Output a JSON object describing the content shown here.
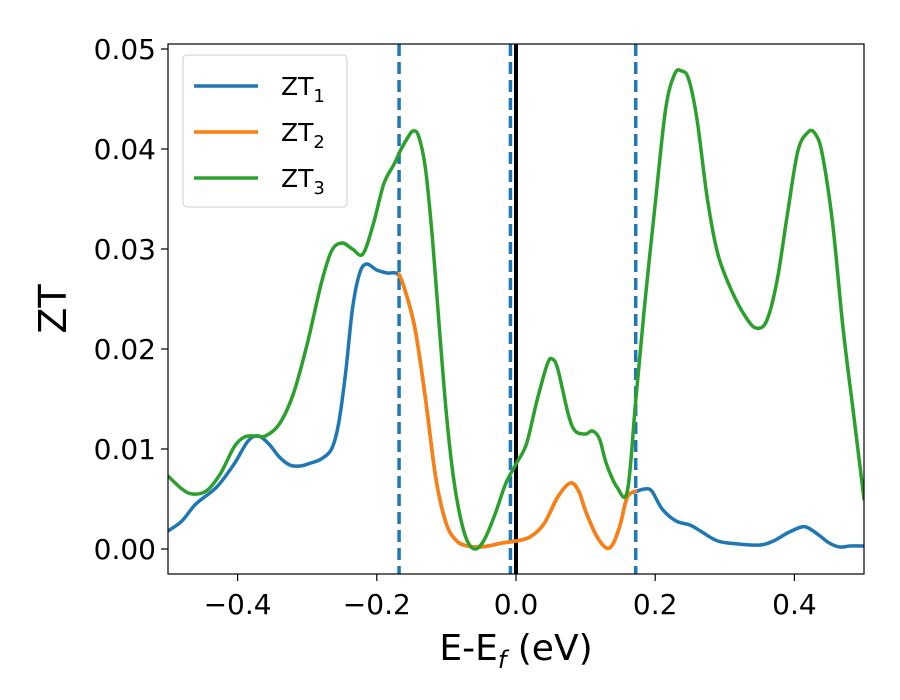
{
  "chart_data": {
    "type": "line",
    "xlabel": {
      "main": "E-E",
      "sub": "f",
      "suffix": " (eV)"
    },
    "ylabel": "ZT",
    "xlim": [
      -0.5,
      0.5
    ],
    "ylim": [
      -0.0025,
      0.0505
    ],
    "xticks": [
      {
        "value": -0.4,
        "label": "−0.4"
      },
      {
        "value": -0.2,
        "label": "−0.2"
      },
      {
        "value": 0.0,
        "label": "0.0"
      },
      {
        "value": 0.2,
        "label": "0.2"
      },
      {
        "value": 0.4,
        "label": "0.4"
      }
    ],
    "yticks": [
      {
        "value": 0.0,
        "label": "0.00"
      },
      {
        "value": 0.01,
        "label": "0.01"
      },
      {
        "value": 0.02,
        "label": "0.02"
      },
      {
        "value": 0.03,
        "label": "0.03"
      },
      {
        "value": 0.04,
        "label": "0.04"
      },
      {
        "value": 0.05,
        "label": "0.05"
      }
    ],
    "grid": false,
    "legend_position": "top-left",
    "vlines": [
      {
        "x": -0.168,
        "style": "dashed",
        "color": "#1f77b4"
      },
      {
        "x": -0.008,
        "style": "dashed",
        "color": "#1f77b4"
      },
      {
        "x": 0.172,
        "style": "dashed",
        "color": "#1f77b4"
      },
      {
        "x": 0.0,
        "style": "solid",
        "color": "#000000"
      }
    ],
    "series": [
      {
        "name": "ZT",
        "sub": "1",
        "color": "#1f77b4",
        "points": [
          [
            -0.5,
            0.0018
          ],
          [
            -0.48,
            0.0028
          ],
          [
            -0.46,
            0.0045
          ],
          [
            -0.43,
            0.0062
          ],
          [
            -0.405,
            0.0085
          ],
          [
            -0.385,
            0.0108
          ],
          [
            -0.37,
            0.0113
          ],
          [
            -0.355,
            0.0105
          ],
          [
            -0.34,
            0.0092
          ],
          [
            -0.325,
            0.0084
          ],
          [
            -0.31,
            0.0083
          ],
          [
            -0.295,
            0.0086
          ],
          [
            -0.28,
            0.009
          ],
          [
            -0.265,
            0.01
          ],
          [
            -0.255,
            0.0125
          ],
          [
            -0.245,
            0.0175
          ],
          [
            -0.235,
            0.024
          ],
          [
            -0.225,
            0.0275
          ],
          [
            -0.215,
            0.0285
          ],
          [
            -0.2,
            0.0279
          ],
          [
            -0.185,
            0.0276
          ],
          [
            -0.17,
            0.0275
          ],
          [
            -0.16,
            0.026
          ],
          [
            -0.145,
            0.022
          ],
          [
            -0.13,
            0.015
          ],
          [
            -0.115,
            0.007
          ],
          [
            -0.1,
            0.0025
          ],
          [
            -0.085,
            0.0008
          ],
          [
            -0.07,
            0.0003
          ],
          [
            -0.055,
            0.0002
          ],
          [
            -0.04,
            0.0003
          ],
          [
            -0.02,
            0.0006
          ],
          [
            0.0,
            0.0008
          ],
          [
            0.02,
            0.0012
          ],
          [
            0.04,
            0.0025
          ],
          [
            0.06,
            0.0052
          ],
          [
            0.078,
            0.0066
          ],
          [
            0.09,
            0.0058
          ],
          [
            0.1,
            0.0038
          ],
          [
            0.115,
            0.0014
          ],
          [
            0.13,
            0.0001
          ],
          [
            0.14,
            0.0006
          ],
          [
            0.15,
            0.0025
          ],
          [
            0.16,
            0.0052
          ],
          [
            0.175,
            0.0058
          ],
          [
            0.185,
            0.006
          ],
          [
            0.195,
            0.0058
          ],
          [
            0.21,
            0.004
          ],
          [
            0.23,
            0.0028
          ],
          [
            0.25,
            0.0024
          ],
          [
            0.265,
            0.0018
          ],
          [
            0.29,
            0.0008
          ],
          [
            0.32,
            0.0005
          ],
          [
            0.35,
            0.0004
          ],
          [
            0.37,
            0.0008
          ],
          [
            0.39,
            0.0016
          ],
          [
            0.41,
            0.0022
          ],
          [
            0.42,
            0.0021
          ],
          [
            0.435,
            0.0014
          ],
          [
            0.45,
            0.0006
          ],
          [
            0.465,
            0.0002
          ],
          [
            0.48,
            0.0003
          ],
          [
            0.5,
            0.0003
          ]
        ]
      },
      {
        "name": "ZT",
        "sub": "2",
        "color": "#ff7f0e",
        "points": [
          [
            -0.168,
            0.0275
          ],
          [
            -0.16,
            0.026
          ],
          [
            -0.145,
            0.022
          ],
          [
            -0.13,
            0.015
          ],
          [
            -0.115,
            0.007
          ],
          [
            -0.1,
            0.0025
          ],
          [
            -0.085,
            0.0008
          ],
          [
            -0.07,
            0.0003
          ],
          [
            -0.055,
            0.0002
          ],
          [
            -0.04,
            0.0003
          ],
          [
            -0.02,
            0.0006
          ],
          [
            0.0,
            0.0008
          ],
          [
            0.02,
            0.0012
          ],
          [
            0.04,
            0.0025
          ],
          [
            0.06,
            0.0052
          ],
          [
            0.078,
            0.0066
          ],
          [
            0.09,
            0.0058
          ],
          [
            0.1,
            0.0038
          ],
          [
            0.115,
            0.0014
          ],
          [
            0.13,
            0.0001
          ],
          [
            0.14,
            0.0006
          ],
          [
            0.15,
            0.0025
          ],
          [
            0.16,
            0.0052
          ],
          [
            0.172,
            0.0058
          ]
        ]
      },
      {
        "name": "ZT",
        "sub": "3",
        "color": "#2ca02c",
        "points": [
          [
            -0.5,
            0.0073
          ],
          [
            -0.48,
            0.006
          ],
          [
            -0.465,
            0.0055
          ],
          [
            -0.445,
            0.0058
          ],
          [
            -0.425,
            0.0075
          ],
          [
            -0.405,
            0.0102
          ],
          [
            -0.39,
            0.0112
          ],
          [
            -0.375,
            0.0113
          ],
          [
            -0.36,
            0.0113
          ],
          [
            -0.34,
            0.0125
          ],
          [
            -0.32,
            0.0155
          ],
          [
            -0.3,
            0.0205
          ],
          [
            -0.28,
            0.0265
          ],
          [
            -0.265,
            0.0298
          ],
          [
            -0.25,
            0.0306
          ],
          [
            -0.235,
            0.03
          ],
          [
            -0.22,
            0.0295
          ],
          [
            -0.205,
            0.0325
          ],
          [
            -0.19,
            0.0365
          ],
          [
            -0.175,
            0.0385
          ],
          [
            -0.165,
            0.04
          ],
          [
            -0.155,
            0.0412
          ],
          [
            -0.148,
            0.0418
          ],
          [
            -0.14,
            0.0413
          ],
          [
            -0.13,
            0.038
          ],
          [
            -0.12,
            0.031
          ],
          [
            -0.11,
            0.022
          ],
          [
            -0.1,
            0.0135
          ],
          [
            -0.09,
            0.0072
          ],
          [
            -0.08,
            0.0032
          ],
          [
            -0.07,
            0.0008
          ],
          [
            -0.058,
            0.0
          ],
          [
            -0.045,
            0.001
          ],
          [
            -0.03,
            0.0035
          ],
          [
            -0.015,
            0.0065
          ],
          [
            0.0,
            0.0085
          ],
          [
            0.015,
            0.0105
          ],
          [
            0.03,
            0.0148
          ],
          [
            0.045,
            0.0185
          ],
          [
            0.052,
            0.019
          ],
          [
            0.06,
            0.018
          ],
          [
            0.075,
            0.0135
          ],
          [
            0.085,
            0.0118
          ],
          [
            0.1,
            0.0115
          ],
          [
            0.11,
            0.0118
          ],
          [
            0.12,
            0.011
          ],
          [
            0.13,
            0.0085
          ],
          [
            0.145,
            0.0062
          ],
          [
            0.16,
            0.0058
          ],
          [
            0.172,
            0.0148
          ],
          [
            0.185,
            0.0245
          ],
          [
            0.2,
            0.0345
          ],
          [
            0.215,
            0.044
          ],
          [
            0.228,
            0.0475
          ],
          [
            0.238,
            0.0478
          ],
          [
            0.248,
            0.047
          ],
          [
            0.26,
            0.043
          ],
          [
            0.275,
            0.035
          ],
          [
            0.29,
            0.0295
          ],
          [
            0.31,
            0.0258
          ],
          [
            0.33,
            0.0232
          ],
          [
            0.345,
            0.0221
          ],
          [
            0.36,
            0.0228
          ],
          [
            0.375,
            0.0268
          ],
          [
            0.39,
            0.0335
          ],
          [
            0.405,
            0.0398
          ],
          [
            0.42,
            0.0417
          ],
          [
            0.43,
            0.0415
          ],
          [
            0.44,
            0.0395
          ],
          [
            0.455,
            0.0325
          ],
          [
            0.47,
            0.022
          ],
          [
            0.485,
            0.0135
          ],
          [
            0.5,
            0.005
          ]
        ]
      }
    ]
  }
}
